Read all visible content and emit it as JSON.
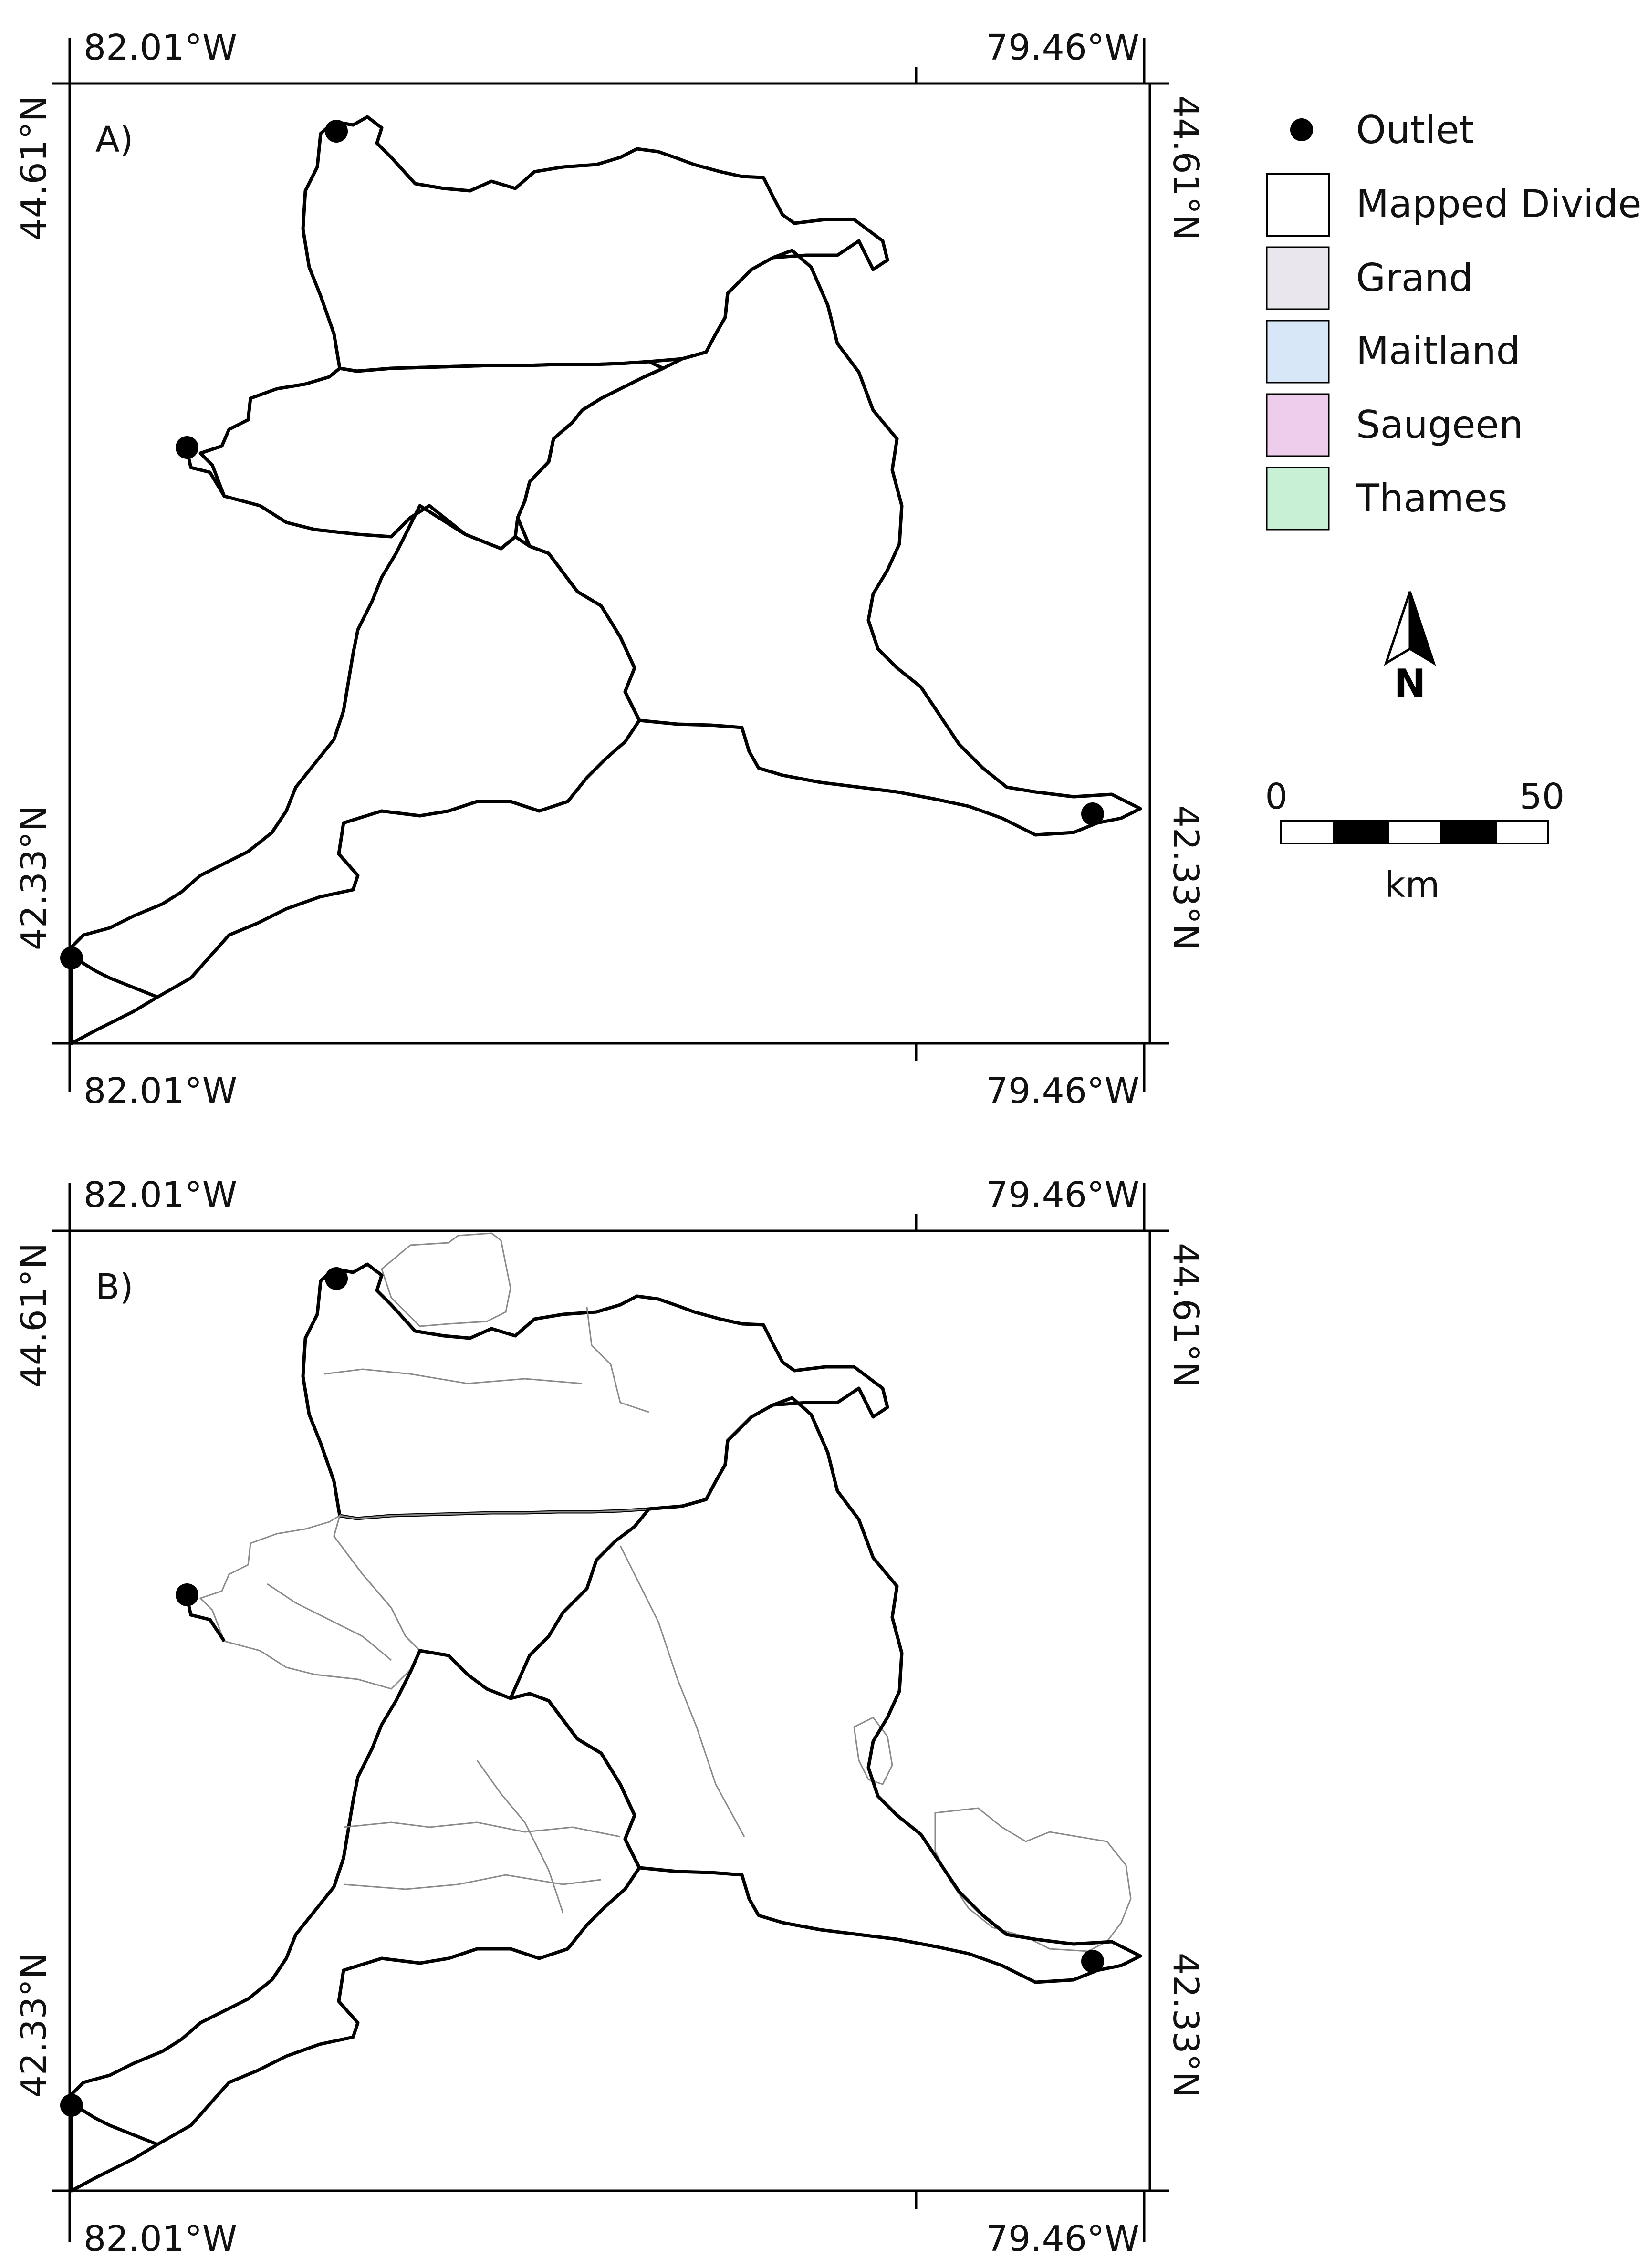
{
  "panels": [
    {
      "label": "A)",
      "coords": {
        "lon_left": "82.01°W",
        "lon_right": "79.46°W",
        "lat_top": "44.61°N",
        "lat_bottom": "42.33°N"
      }
    },
    {
      "label": "B)",
      "coords": {
        "lon_left": "82.01°W",
        "lon_right": "79.46°W",
        "lat_top": "44.61°N",
        "lat_bottom": "42.33°N"
      }
    }
  ],
  "legend": {
    "items": [
      {
        "label": "Outlet",
        "symbol": "point",
        "color": "#000000"
      },
      {
        "label": "Mapped Divide",
        "symbol": "box",
        "color": "#ffffff"
      },
      {
        "label": "Grand",
        "symbol": "box",
        "color": "#e9e7ed"
      },
      {
        "label": "Maitland",
        "symbol": "box",
        "color": "#d8e7f7"
      },
      {
        "label": "Saugeen",
        "symbol": "box",
        "color": "#eecdec"
      },
      {
        "label": "Thames",
        "symbol": "box",
        "color": "#c8f0d4"
      }
    ]
  },
  "north_arrow": {
    "label": "N"
  },
  "scale_bar": {
    "start": "0",
    "end": "50",
    "unit": "km"
  },
  "colors": {
    "grand": "#e9e7ed",
    "maitland": "#d8e7f7",
    "saugeen": "#eecdec",
    "thames": "#c8f0d4",
    "purple_region": "#e6daf3",
    "light_pink": "#f6e6f4",
    "light_grey": "#f4f4f7"
  }
}
